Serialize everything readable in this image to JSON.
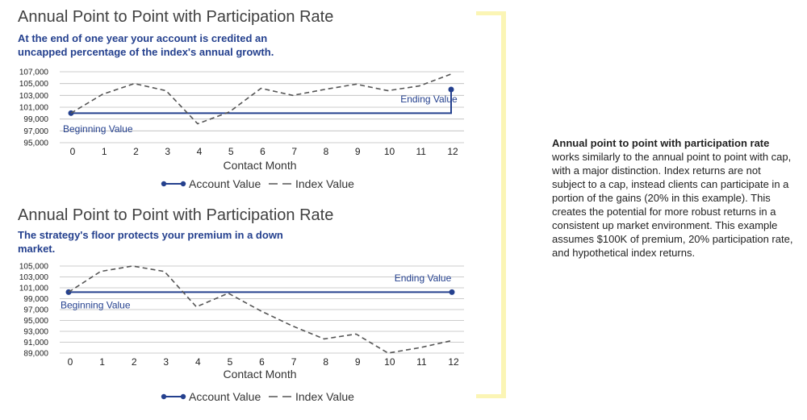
{
  "colors": {
    "account": "#24408e",
    "index": "#555555",
    "grid": "#bbbbbb",
    "bracket": "#fbf5b5"
  },
  "side_note": {
    "heading": "Annual point to point with participation rate",
    "body": "works similarly to the annual point to point with cap, with a major distinction. Index returns are not subject to a cap, instead clients can participate in a portion of the gains (20% in this example). This creates the potential for more robust returns in a consistent up market environment. This example assumes $100K of premium, 20% participation rate, and hypothetical index returns."
  },
  "chart_data": [
    {
      "type": "line",
      "title": "Annual Point to Point with Participation Rate",
      "subtitle": "At the end of one year your account is credited an uncapped percentage of the index's annual growth.",
      "xlabel": "Contact Month",
      "ylabel": "",
      "x": [
        0,
        1,
        2,
        3,
        4,
        5,
        6,
        7,
        8,
        9,
        10,
        11,
        12
      ],
      "xlim": [
        0,
        12
      ],
      "ylim": [
        95000,
        107000
      ],
      "yticks": [
        "107,000",
        "105,000",
        "103,000",
        "101,000",
        "99,000",
        "97,000",
        "95,000"
      ],
      "ytick_values": [
        107000,
        105000,
        103000,
        101000,
        99000,
        97000,
        95000
      ],
      "grid": true,
      "legend": {
        "position": "bottom",
        "entries": [
          "Account Value",
          "Index Value"
        ]
      },
      "series": [
        {
          "name": "Account Value",
          "style": "solid-markers",
          "x": [
            0,
            12,
            12
          ],
          "y": [
            100000,
            100000,
            104000
          ]
        },
        {
          "name": "Index Value",
          "style": "dashed",
          "x": [
            0,
            1,
            2,
            3,
            4,
            5,
            6,
            7,
            8,
            9,
            10,
            11,
            12
          ],
          "y": [
            100000,
            103200,
            105000,
            103800,
            98200,
            100200,
            104200,
            103000,
            104000,
            104900,
            103800,
            104600,
            106600
          ]
        }
      ],
      "annotations": [
        {
          "text": "Beginning Value",
          "x": 0,
          "y": 96800
        },
        {
          "text": "Ending Value",
          "x": 10.4,
          "y": 101800
        }
      ]
    },
    {
      "type": "line",
      "title": "Annual Point to Point with Participation Rate",
      "subtitle": "The strategy's floor protects your premium in a down market.",
      "xlabel": "Contact Month",
      "ylabel": "",
      "x": [
        0,
        1,
        2,
        3,
        4,
        5,
        6,
        7,
        8,
        9,
        10,
        11,
        12
      ],
      "xlim": [
        0,
        12
      ],
      "ylim": [
        89000,
        105000
      ],
      "yticks": [
        "105,000",
        "103,000",
        "101,000",
        "99,000",
        "97,000",
        "95,000",
        "93,000",
        "91,000",
        "89,000"
      ],
      "ytick_values": [
        105000,
        103000,
        101000,
        99000,
        97000,
        95000,
        93000,
        91000,
        89000
      ],
      "grid": true,
      "legend": {
        "position": "bottom",
        "entries": [
          "Account Value",
          "Index Value"
        ]
      },
      "series": [
        {
          "name": "Account Value",
          "style": "solid-markers",
          "x": [
            0,
            12
          ],
          "y": [
            100200,
            100200
          ]
        },
        {
          "name": "Index Value",
          "style": "dashed",
          "x": [
            0,
            1,
            2,
            3,
            4,
            5,
            6,
            7,
            8,
            9,
            10,
            11,
            12
          ],
          "y": [
            100200,
            104000,
            105000,
            104000,
            97500,
            100000,
            96800,
            94000,
            91600,
            92500,
            89000,
            90000,
            91300
          ]
        }
      ],
      "annotations": [
        {
          "text": "Beginning Value",
          "x": 0,
          "y": 97200
        },
        {
          "text": "Ending Value",
          "x": 10.2,
          "y": 102200
        }
      ]
    }
  ]
}
